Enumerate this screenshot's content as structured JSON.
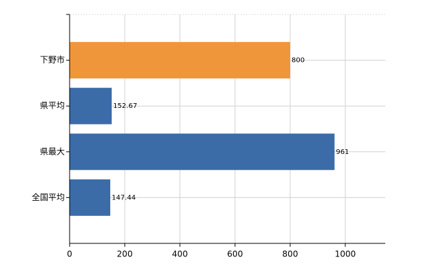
{
  "chart_data": {
    "type": "hbar",
    "categories": [
      "下野市",
      "県平均",
      "県最大",
      "全国平均"
    ],
    "values": [
      800,
      152.67,
      961,
      147.44
    ],
    "colors": [
      "#f0963a",
      "#3b6ca8",
      "#3b6ca8",
      "#3b6ca8"
    ],
    "xlim": [
      0,
      1145
    ],
    "xticks": [
      0,
      200,
      400,
      600,
      800,
      1000
    ],
    "grid": true
  }
}
